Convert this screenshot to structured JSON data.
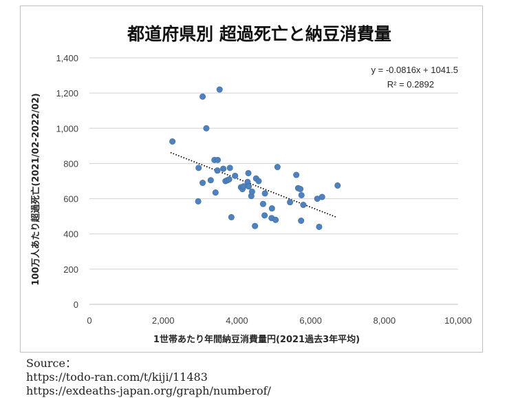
{
  "chart_data": {
    "type": "scatter",
    "title": "都道府県別 超過死亡と納豆消費量",
    "xlabel": "1世帯あたり年間納豆消費量円(2021過去3年平均)",
    "ylabel": "100万人あたり超過死亡(2021/02-2022/02)",
    "xlim": [
      0,
      10000
    ],
    "ylim": [
      0,
      1400
    ],
    "x_ticks": [
      0,
      2000,
      4000,
      6000,
      8000,
      10000
    ],
    "x_tick_labels": [
      "0",
      "2,000",
      "4,000",
      "6,000",
      "8,000",
      "10,000"
    ],
    "y_ticks": [
      0,
      200,
      400,
      600,
      800,
      1000,
      1200,
      1400
    ],
    "y_tick_labels": [
      "0",
      "200",
      "400",
      "600",
      "800",
      "1,000",
      "1,200",
      "1,400"
    ],
    "grid": "horizontal",
    "marker_color": "#4f81bd",
    "trendline": {
      "type": "linear",
      "slope": -0.0816,
      "intercept": 1041.5,
      "x_range": [
        2200,
        6700
      ],
      "style": "dotted",
      "color": "#000000"
    },
    "equation_label": "y = -0.0816x + 1041.5",
    "r2_label": "R² = 0.2892",
    "points": [
      [
        2250,
        925
      ],
      [
        2950,
        585
      ],
      [
        2960,
        775
      ],
      [
        3070,
        690
      ],
      [
        3070,
        1180
      ],
      [
        3170,
        1000
      ],
      [
        3290,
        705
      ],
      [
        3390,
        820
      ],
      [
        3420,
        635
      ],
      [
        3480,
        820
      ],
      [
        3470,
        760
      ],
      [
        3530,
        1220
      ],
      [
        3630,
        770
      ],
      [
        3690,
        700
      ],
      [
        3740,
        705
      ],
      [
        3790,
        710
      ],
      [
        3810,
        775
      ],
      [
        3850,
        495
      ],
      [
        3950,
        730
      ],
      [
        4110,
        665
      ],
      [
        4150,
        655
      ],
      [
        4180,
        670
      ],
      [
        4290,
        695
      ],
      [
        4310,
        745
      ],
      [
        4320,
        670
      ],
      [
        4390,
        615
      ],
      [
        4410,
        640
      ],
      [
        4490,
        445
      ],
      [
        4520,
        715
      ],
      [
        4590,
        700
      ],
      [
        4710,
        570
      ],
      [
        4750,
        505
      ],
      [
        4760,
        630
      ],
      [
        4940,
        490
      ],
      [
        4950,
        545
      ],
      [
        5050,
        480
      ],
      [
        5100,
        780
      ],
      [
        5440,
        580
      ],
      [
        5610,
        735
      ],
      [
        5660,
        660
      ],
      [
        5720,
        655
      ],
      [
        5740,
        475
      ],
      [
        5750,
        620
      ],
      [
        5800,
        565
      ],
      [
        6180,
        600
      ],
      [
        6230,
        440
      ],
      [
        6310,
        610
      ],
      [
        6730,
        675
      ]
    ]
  },
  "source": {
    "heading": "Source：",
    "lines": [
      "https://todo-ran.com/t/kiji/11483",
      "https://exdeaths-japan.org/graph/numberof/"
    ]
  }
}
